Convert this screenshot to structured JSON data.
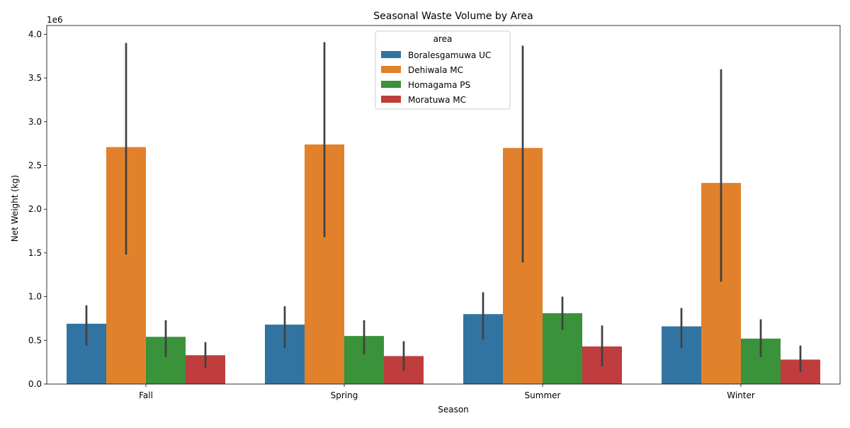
{
  "chart_data": {
    "type": "bar",
    "title": "Seasonal Waste Volume by Area",
    "xlabel": "Season",
    "ylabel": "Net Weight (kg)",
    "y_offset_text": "1e6",
    "categories": [
      "Fall",
      "Spring",
      "Summer",
      "Winter"
    ],
    "ylim": [
      0,
      4100000
    ],
    "yticks": [
      0,
      500000,
      1000000,
      1500000,
      2000000,
      2500000,
      3000000,
      3500000,
      4000000
    ],
    "ytick_labels": [
      "0.0",
      "0.5",
      "1.0",
      "1.5",
      "2.0",
      "2.5",
      "3.0",
      "3.5",
      "4.0"
    ],
    "grid": false,
    "legend": {
      "title": "area",
      "placement": "upper-center"
    },
    "series": [
      {
        "name": "Boralesgamuwa UC",
        "color": "#3274a1",
        "values": [
          690000,
          680000,
          800000,
          660000
        ],
        "ci_low": [
          440000,
          410000,
          510000,
          410000
        ],
        "ci_high": [
          900000,
          890000,
          1050000,
          870000
        ]
      },
      {
        "name": "Dehiwala MC",
        "color": "#e1812c",
        "values": [
          2710000,
          2740000,
          2700000,
          2300000
        ],
        "ci_low": [
          1480000,
          1680000,
          1390000,
          1170000
        ],
        "ci_high": [
          3900000,
          3910000,
          3870000,
          3600000
        ]
      },
      {
        "name": "Homagama PS",
        "color": "#3a923a",
        "values": [
          540000,
          550000,
          810000,
          520000
        ],
        "ci_low": [
          310000,
          340000,
          620000,
          310000
        ],
        "ci_high": [
          730000,
          730000,
          1000000,
          740000
        ]
      },
      {
        "name": "Moratuwa MC",
        "color": "#c03d3e",
        "values": [
          330000,
          320000,
          430000,
          280000
        ],
        "ci_low": [
          180000,
          150000,
          200000,
          140000
        ],
        "ci_high": [
          480000,
          490000,
          670000,
          440000
        ]
      }
    ]
  }
}
